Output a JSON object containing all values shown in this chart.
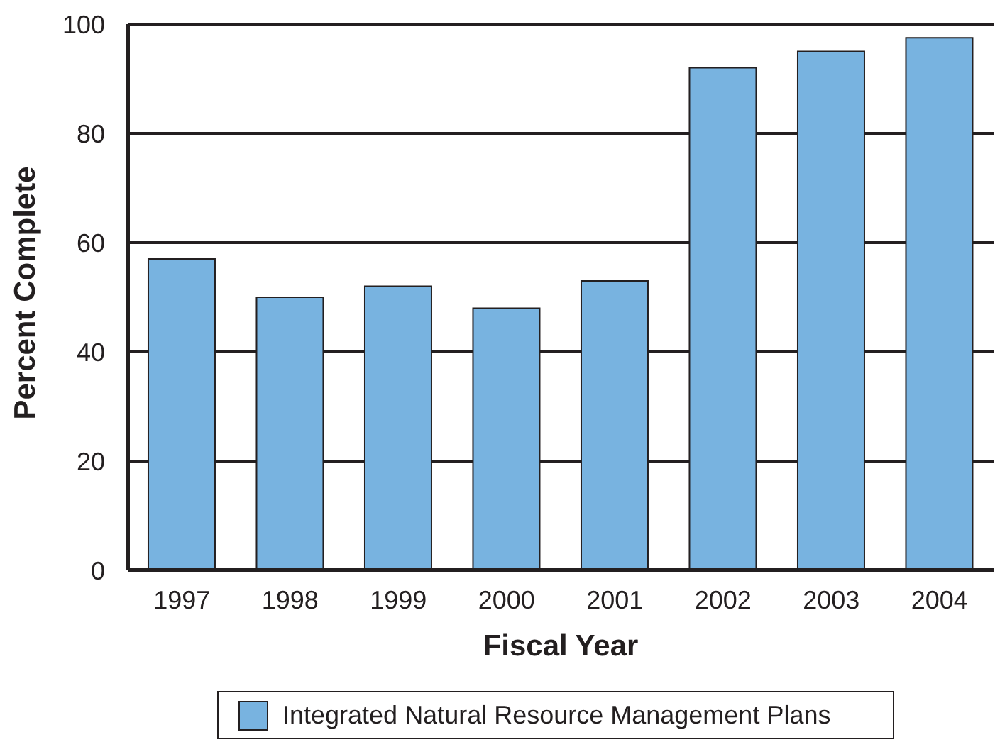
{
  "chart_data": {
    "type": "bar",
    "xlabel": "Fiscal Year",
    "ylabel": "Percent Complete",
    "categories": [
      "1997",
      "1998",
      "1999",
      "2000",
      "2001",
      "2002",
      "2003",
      "2004"
    ],
    "series": [
      {
        "name": "Integrated Natural Resource Management Plans",
        "color": "#78b3e0",
        "values": [
          57,
          50,
          52,
          48,
          53,
          92,
          95,
          97.5
        ]
      }
    ],
    "ylim": [
      0,
      100
    ],
    "yticks": [
      0,
      20,
      40,
      60,
      80,
      100
    ],
    "grid": "y",
    "legend": "bottom"
  }
}
